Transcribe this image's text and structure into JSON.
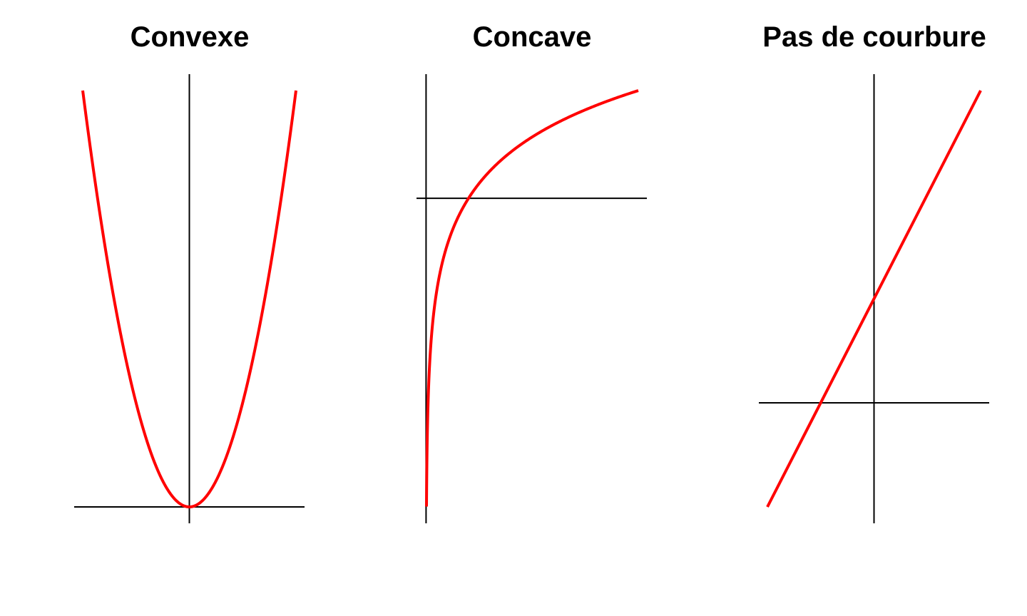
{
  "colors": {
    "curve": "#ff0000",
    "axis": "#000000",
    "background": "#ffffff"
  },
  "chart_data": [
    {
      "type": "line",
      "title": "Convexe",
      "function": "x^2",
      "x": [
        -1,
        -0.9,
        -0.8,
        -0.7,
        -0.6,
        -0.5,
        -0.4,
        -0.3,
        -0.2,
        -0.1,
        0,
        0.1,
        0.2,
        0.3,
        0.4,
        0.5,
        0.6,
        0.7,
        0.8,
        0.9,
        1
      ],
      "y": [
        1,
        0.81,
        0.64,
        0.49,
        0.36,
        0.25,
        0.16,
        0.09,
        0.04,
        0.01,
        0,
        0.01,
        0.04,
        0.09,
        0.16,
        0.25,
        0.36,
        0.49,
        0.64,
        0.81,
        1
      ],
      "xlim": [
        -1,
        1
      ],
      "ylim": [
        0,
        1
      ],
      "axes_cross": [
        0,
        0
      ],
      "grid": false,
      "ticks": false
    },
    {
      "type": "line",
      "title": "Concave",
      "function": "log(x)",
      "x": [
        0.01,
        0.02,
        0.05,
        0.1,
        0.2,
        0.3,
        0.5,
        0.75,
        1,
        1.5,
        2,
        2.5,
        3,
        3.5,
        4,
        4.5,
        5
      ],
      "y": [
        -4.61,
        -3.91,
        -3.0,
        -2.3,
        -1.61,
        -1.2,
        -0.69,
        -0.29,
        0,
        0.41,
        0.69,
        0.92,
        1.1,
        1.25,
        1.39,
        1.5,
        1.61
      ],
      "xlim": [
        0.01,
        5
      ],
      "ylim": [
        -4.61,
        1.61
      ],
      "axes_cross": [
        0,
        0
      ],
      "grid": false,
      "ticks": false
    },
    {
      "type": "line",
      "title": "Pas de courbure",
      "function": "2x + 1",
      "x": [
        -1,
        1
      ],
      "y": [
        -1,
        3
      ],
      "xlim": [
        -1,
        1
      ],
      "ylim": [
        -1,
        3
      ],
      "axes_cross": [
        0,
        0
      ],
      "grid": false,
      "ticks": false
    }
  ]
}
